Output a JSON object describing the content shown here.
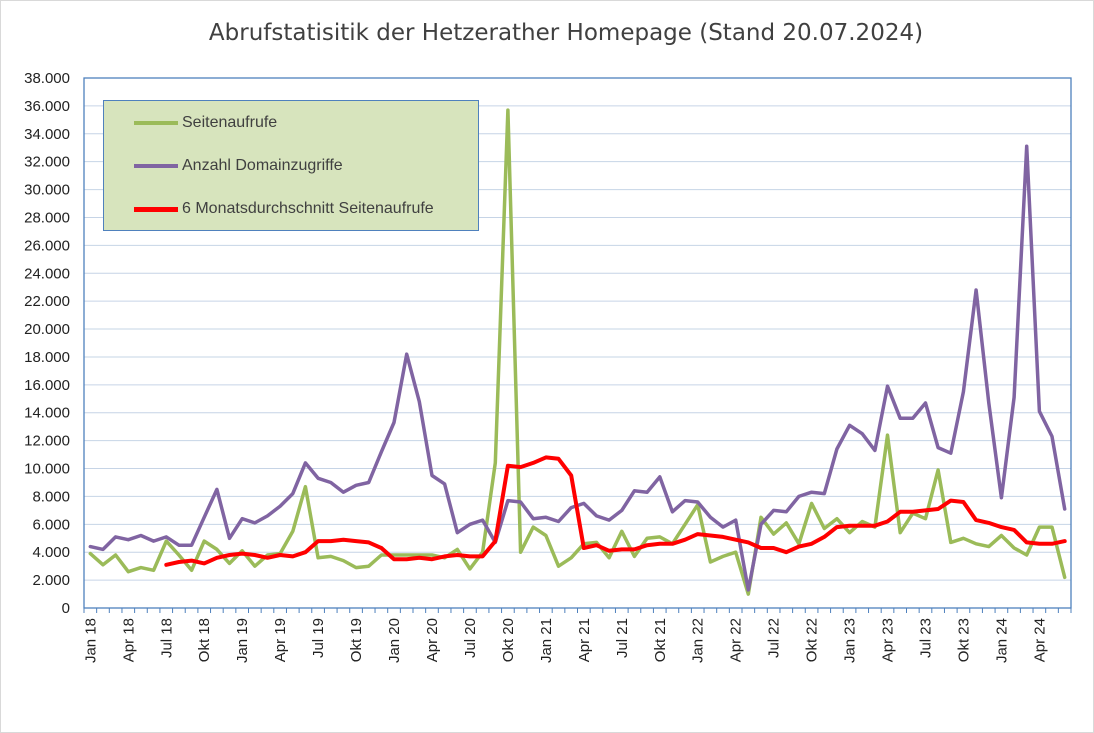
{
  "title": "Abrufstatisitik der Hetzerather Homepage (Stand 20.07.2024)",
  "chart_data": {
    "type": "line",
    "title": "Abrufstatisitik der Hetzerather Homepage (Stand 20.07.2024)",
    "xlabel": "",
    "ylabel": "",
    "ylim": [
      0,
      38000
    ],
    "y_ticks": [
      "0",
      "2.000",
      "4.000",
      "6.000",
      "8.000",
      "10.000",
      "12.000",
      "14.000",
      "16.000",
      "18.000",
      "20.000",
      "22.000",
      "24.000",
      "26.000",
      "28.000",
      "30.000",
      "32.000",
      "34.000",
      "36.000",
      "38.000"
    ],
    "x_tick_labels": [
      "Jan 18",
      "Apr 18",
      "Jul 18",
      "Okt 18",
      "Jan 19",
      "Apr 19",
      "Jul 19",
      "Okt 19",
      "Jan 20",
      "Apr 20",
      "Jul 20",
      "Okt 20",
      "Jan 21",
      "Apr 21",
      "Jul 21",
      "Okt 21",
      "Jan 22",
      "Apr 22",
      "Jul 22",
      "Okt 22",
      "Jan 23",
      "Apr 23",
      "Jul 23",
      "Okt 23",
      "Jan 24",
      "Apr 24"
    ],
    "grid": true,
    "legend_position": "top-left",
    "categories": [
      "Jan 18",
      "Feb 18",
      "Mär 18",
      "Apr 18",
      "Mai 18",
      "Jun 18",
      "Jul 18",
      "Aug 18",
      "Sep 18",
      "Okt 18",
      "Nov 18",
      "Dez 18",
      "Jan 19",
      "Feb 19",
      "Mär 19",
      "Apr 19",
      "Mai 19",
      "Jun 19",
      "Jul 19",
      "Aug 19",
      "Sep 19",
      "Okt 19",
      "Nov 19",
      "Dez 19",
      "Jan 20",
      "Feb 20",
      "Mär 20",
      "Apr 20",
      "Mai 20",
      "Jun 20",
      "Jul 20",
      "Aug 20",
      "Sep 20",
      "Okt 20",
      "Nov 20",
      "Dez 20",
      "Jan 21",
      "Feb 21",
      "Mär 21",
      "Apr 21",
      "Mai 21",
      "Jun 21",
      "Jul 21",
      "Aug 21",
      "Sep 21",
      "Okt 21",
      "Nov 21",
      "Dez 21",
      "Jan 22",
      "Feb 22",
      "Mär 22",
      "Apr 22",
      "Mai 22",
      "Jun 22",
      "Jul 22",
      "Aug 22",
      "Sep 22",
      "Okt 22",
      "Nov 22",
      "Dez 22",
      "Jan 23",
      "Feb 23",
      "Mär 23",
      "Apr 23",
      "Mai 23",
      "Jun 23",
      "Jul 23",
      "Aug 23",
      "Sep 23",
      "Okt 23",
      "Nov 23",
      "Dez 23",
      "Jan 24",
      "Feb 24",
      "Mär 24",
      "Apr 24",
      "Mai 24",
      "Jun 24"
    ],
    "series": [
      {
        "name": "Seitenaufrufe",
        "color": "#9bbb59",
        "values": [
          3900,
          3100,
          3800,
          2600,
          2900,
          2700,
          4800,
          3800,
          2700,
          4800,
          4200,
          3200,
          4100,
          3000,
          3800,
          3900,
          5500,
          8700,
          3600,
          3700,
          3400,
          2900,
          3000,
          3800,
          3800,
          3800,
          3800,
          3800,
          3600,
          4200,
          2800,
          4000,
          10400,
          35700,
          4000,
          5800,
          5200,
          3000,
          3600,
          4600,
          4700,
          3600,
          5500,
          3700,
          5000,
          5100,
          4600,
          6000,
          7400,
          3300,
          3700,
          4000,
          1000,
          6500,
          5300,
          6100,
          4600,
          7500,
          5700,
          6400,
          5400,
          6200,
          5800,
          12400,
          5400,
          6800,
          6400,
          9900,
          4700,
          5000,
          4600,
          4400,
          5200,
          4300,
          3800,
          5800,
          5800,
          2200
        ]
      },
      {
        "name": "Anzahl Domainzugriffe",
        "color": "#8064a2",
        "values": [
          4400,
          4200,
          5100,
          4900,
          5200,
          4800,
          5100,
          4500,
          4500,
          6500,
          8500,
          5000,
          6400,
          6100,
          6600,
          7300,
          8200,
          10400,
          9300,
          9000,
          8300,
          8800,
          9000,
          11200,
          13300,
          18200,
          14800,
          9500,
          8900,
          5400,
          6000,
          6300,
          4700,
          7700,
          7600,
          6400,
          6500,
          6200,
          7200,
          7500,
          6600,
          6300,
          7000,
          8400,
          8300,
          9400,
          6900,
          7700,
          7600,
          6500,
          5800,
          6300,
          1300,
          6000,
          7000,
          6900,
          8000,
          8300,
          8200,
          11400,
          13100,
          12500,
          11300,
          15900,
          13600,
          13600,
          14700,
          11500,
          11100,
          15500,
          22800,
          14700,
          7900,
          15100,
          33100,
          14100,
          12300,
          7100
        ]
      },
      {
        "name": "6 Monatsdurchschnitt Seitenaufrufe",
        "color": "#ff0000",
        "values": [
          null,
          null,
          null,
          null,
          null,
          null,
          3100,
          3300,
          3400,
          3200,
          3600,
          3800,
          3900,
          3800,
          3600,
          3800,
          3700,
          4000,
          4800,
          4800,
          4900,
          4800,
          4700,
          4300,
          3500,
          3500,
          3600,
          3500,
          3700,
          3800,
          3700,
          3700,
          4800,
          10200,
          10100,
          10400,
          10800,
          10700,
          9500,
          4300,
          4500,
          4100,
          4200,
          4200,
          4500,
          4600,
          4600,
          4900,
          5300,
          5200,
          5100,
          4900,
          4700,
          4300,
          4300,
          4000,
          4400,
          4600,
          5100,
          5800,
          5900,
          5900,
          5900,
          6200,
          6900,
          6900,
          7000,
          7100,
          7700,
          7600,
          6300,
          6100,
          5800,
          5600,
          4700,
          4600,
          4600,
          4800
        ]
      }
    ]
  }
}
